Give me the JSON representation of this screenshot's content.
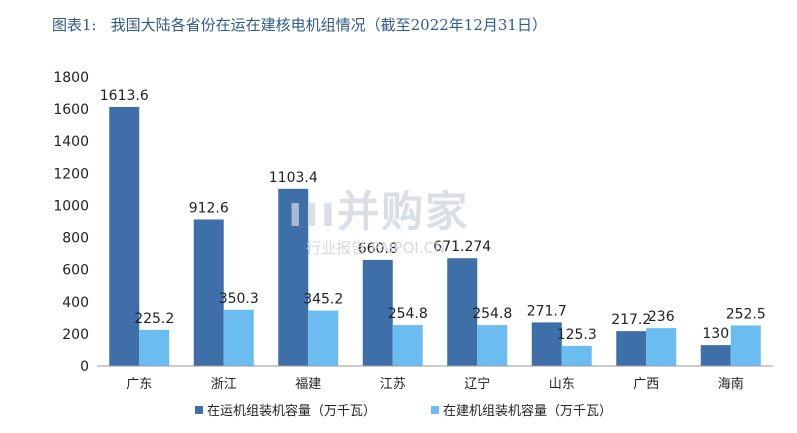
{
  "figure": {
    "prefix": "图表1:",
    "title": "我国大陆各省份在运在建核电机组情况（截至2022年12月31日）"
  },
  "watermark": {
    "main": "ııı并购家",
    "sub": "行业报告 PAIPOI.CN"
  },
  "colors": {
    "operating": "#3f6fa8",
    "construction": "#6bbcf0",
    "axis": "#999999"
  },
  "chart_data": {
    "type": "bar",
    "title": "我国大陆各省份在运在建核电机组情况（截至2022年12月31日）",
    "categories": [
      "广东",
      "浙江",
      "福建",
      "江苏",
      "辽宁",
      "山东",
      "广西",
      "海南"
    ],
    "series": [
      {
        "name": "在运机组装机容量（万千瓦）",
        "values": [
          1613.6,
          912.6,
          1103.4,
          660.8,
          671.274,
          271.7,
          217.2,
          130
        ]
      },
      {
        "name": "在建机组装机容量（万千瓦）",
        "values": [
          225.2,
          350.3,
          345.2,
          254.8,
          254.8,
          125.3,
          236,
          252.5
        ]
      }
    ],
    "data_labels": [
      [
        "1613.6",
        "912.6",
        "1103.4",
        "660.8",
        "671.274",
        "271.7",
        "217.2",
        "130"
      ],
      [
        "225.2",
        "350.3",
        "345.2",
        "254.8",
        "254.8",
        "125.3",
        "236",
        "252.5"
      ]
    ],
    "ylim": [
      0,
      1800
    ],
    "yticks": [
      0,
      200,
      400,
      600,
      800,
      1000,
      1200,
      1400,
      1600,
      1800
    ],
    "xlabel": "",
    "ylabel": "",
    "legend_position": "bottom",
    "grid": false
  }
}
